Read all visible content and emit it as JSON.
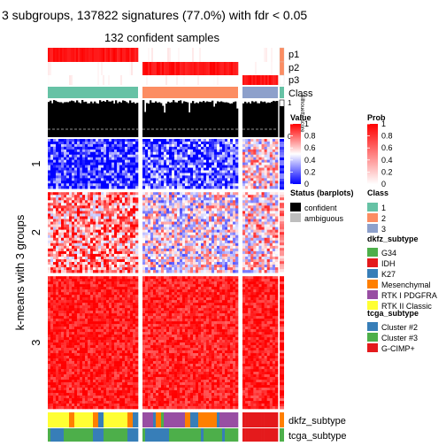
{
  "chart_data": {
    "type": "heatmap",
    "title": "3 subgroups, 137822 signatures (77.0%) with fdr < 0.05",
    "subtitle": "132 confident samples",
    "row_title": "k-means with 3 groups",
    "row_groups": [
      "1",
      "2",
      "3"
    ],
    "row_group_weights": [
      0.21,
      0.34,
      0.56
    ],
    "column_groups": [
      "1",
      "2",
      "3"
    ],
    "column_group_weights": [
      0.46,
      0.5,
      0.19
    ],
    "annotation_rows": {
      "prob": [
        "p1",
        "p2",
        "p3"
      ],
      "class": "Class",
      "silhouette": "Silhouette score",
      "silhouette_ticks": [
        "1",
        "0"
      ],
      "dkfz_subtype": "dkfz_subtype",
      "tcga_subtype": "tcga_subtype"
    },
    "silhouette_threshold": 0.5,
    "legends": {
      "value": {
        "title": "Value",
        "ticks": [
          "1",
          "0.8",
          "0.6",
          "0.4",
          "0.2",
          "0"
        ],
        "colors": [
          "#FF0000",
          "#FFFFFF",
          "#0000FF"
        ]
      },
      "prob": {
        "title": "Prob",
        "ticks": [
          "1",
          "0.8",
          "0.6",
          "0.4",
          "0.2",
          "0"
        ],
        "colors": [
          "#FF0000",
          "#FFFFFF"
        ]
      },
      "status": {
        "title": "Status (barplots)",
        "items": [
          {
            "label": "confident",
            "color": "#000000"
          },
          {
            "label": "ambiguous",
            "color": "#BEBEBE"
          }
        ]
      },
      "class": {
        "title": "Class",
        "items": [
          {
            "label": "1",
            "color": "#66C2A5"
          },
          {
            "label": "2",
            "color": "#FC8D62"
          },
          {
            "label": "3",
            "color": "#8DA0CB"
          }
        ]
      },
      "dkfz_subtype": {
        "title": "dkfz_subtype",
        "items": [
          {
            "label": "G34",
            "color": "#4DAF4A"
          },
          {
            "label": "IDH",
            "color": "#E41A1C"
          },
          {
            "label": "K27",
            "color": "#377EB8"
          },
          {
            "label": "Mesenchymal",
            "color": "#FF7F00"
          },
          {
            "label": "RTK I PDGFRA",
            "color": "#984EA3"
          },
          {
            "label": "RTK II Classic",
            "color": "#FFFF33"
          }
        ]
      },
      "tcga_subtype": {
        "title": "tcga_subtype",
        "items": [
          {
            "label": "Cluster #2",
            "color": "#377EB8"
          },
          {
            "label": "Cluster #3",
            "color": "#4DAF4A"
          },
          {
            "label": "G-CIMP+",
            "color": "#E41A1C"
          }
        ]
      }
    }
  }
}
